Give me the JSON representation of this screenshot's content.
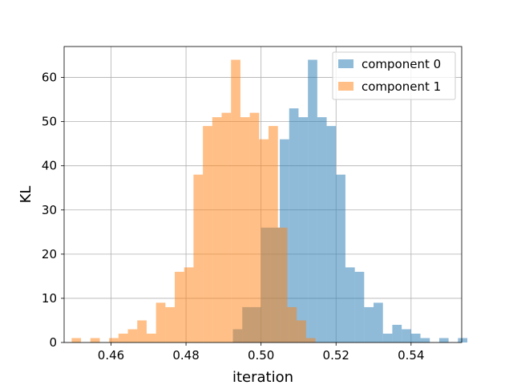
{
  "chart_data": {
    "type": "histogram",
    "title": "",
    "xlabel": "iteration",
    "ylabel": "KL",
    "xlim": [
      0.4475,
      0.5535
    ],
    "ylim": [
      0,
      67
    ],
    "xticks": [
      0.46,
      0.48,
      0.5,
      0.52,
      0.54
    ],
    "xtick_labels": [
      "0.46",
      "0.48",
      "0.50",
      "0.52",
      "0.54"
    ],
    "yticks": [
      0,
      10,
      20,
      30,
      40,
      50,
      60
    ],
    "ytick_labels": [
      "0",
      "10",
      "20",
      "30",
      "40",
      "50",
      "60"
    ],
    "grid": true,
    "legend_position": "top-right",
    "series": [
      {
        "name": "component 0",
        "color": "#1f77b4",
        "alpha": 0.5,
        "bin_start": 0.4925,
        "bin_width": 0.0025,
        "counts": [
          3,
          8,
          8,
          26,
          26,
          46,
          53,
          51,
          64,
          51,
          49,
          38,
          17,
          16,
          8,
          9,
          2,
          4,
          3,
          2,
          1,
          0,
          1,
          0,
          1
        ]
      },
      {
        "name": "component 1",
        "color": "#ff7f0e",
        "alpha": 0.5,
        "bin_start": 0.4495,
        "bin_width": 0.0025,
        "counts": [
          1,
          0,
          1,
          0,
          1,
          2,
          3,
          5,
          2,
          9,
          8,
          16,
          17,
          38,
          49,
          51,
          52,
          64,
          51,
          52,
          46,
          49,
          26,
          8,
          5,
          1
        ]
      }
    ]
  }
}
